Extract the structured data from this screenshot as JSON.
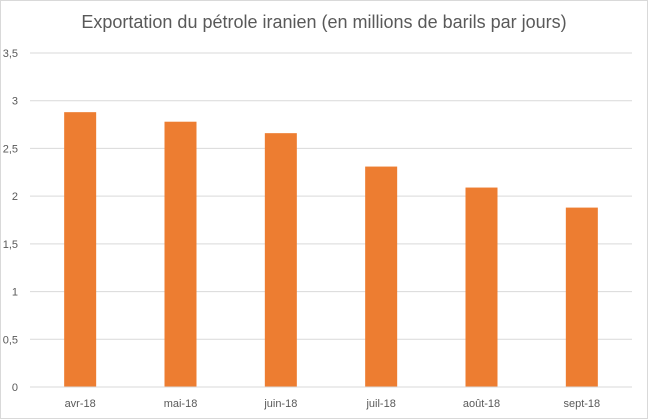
{
  "chart_data": {
    "type": "bar",
    "title": "Exportation du pétrole iranien (en millions de barils par jours)",
    "categories": [
      "avr-18",
      "mai-18",
      "juin-18",
      "juil-18",
      "août-18",
      "sept-18"
    ],
    "values": [
      2.88,
      2.78,
      2.66,
      2.31,
      2.09,
      1.88
    ],
    "ylim": [
      0,
      3.5
    ],
    "yticks": [
      "0",
      "0,5",
      "1",
      "1,5",
      "2",
      "2,5",
      "3",
      "3,5"
    ],
    "xlabel": "",
    "ylabel": "",
    "grid": true,
    "legend": "none",
    "bar_color": "#ED7D31",
    "grid_color": "#D9D9D9"
  }
}
